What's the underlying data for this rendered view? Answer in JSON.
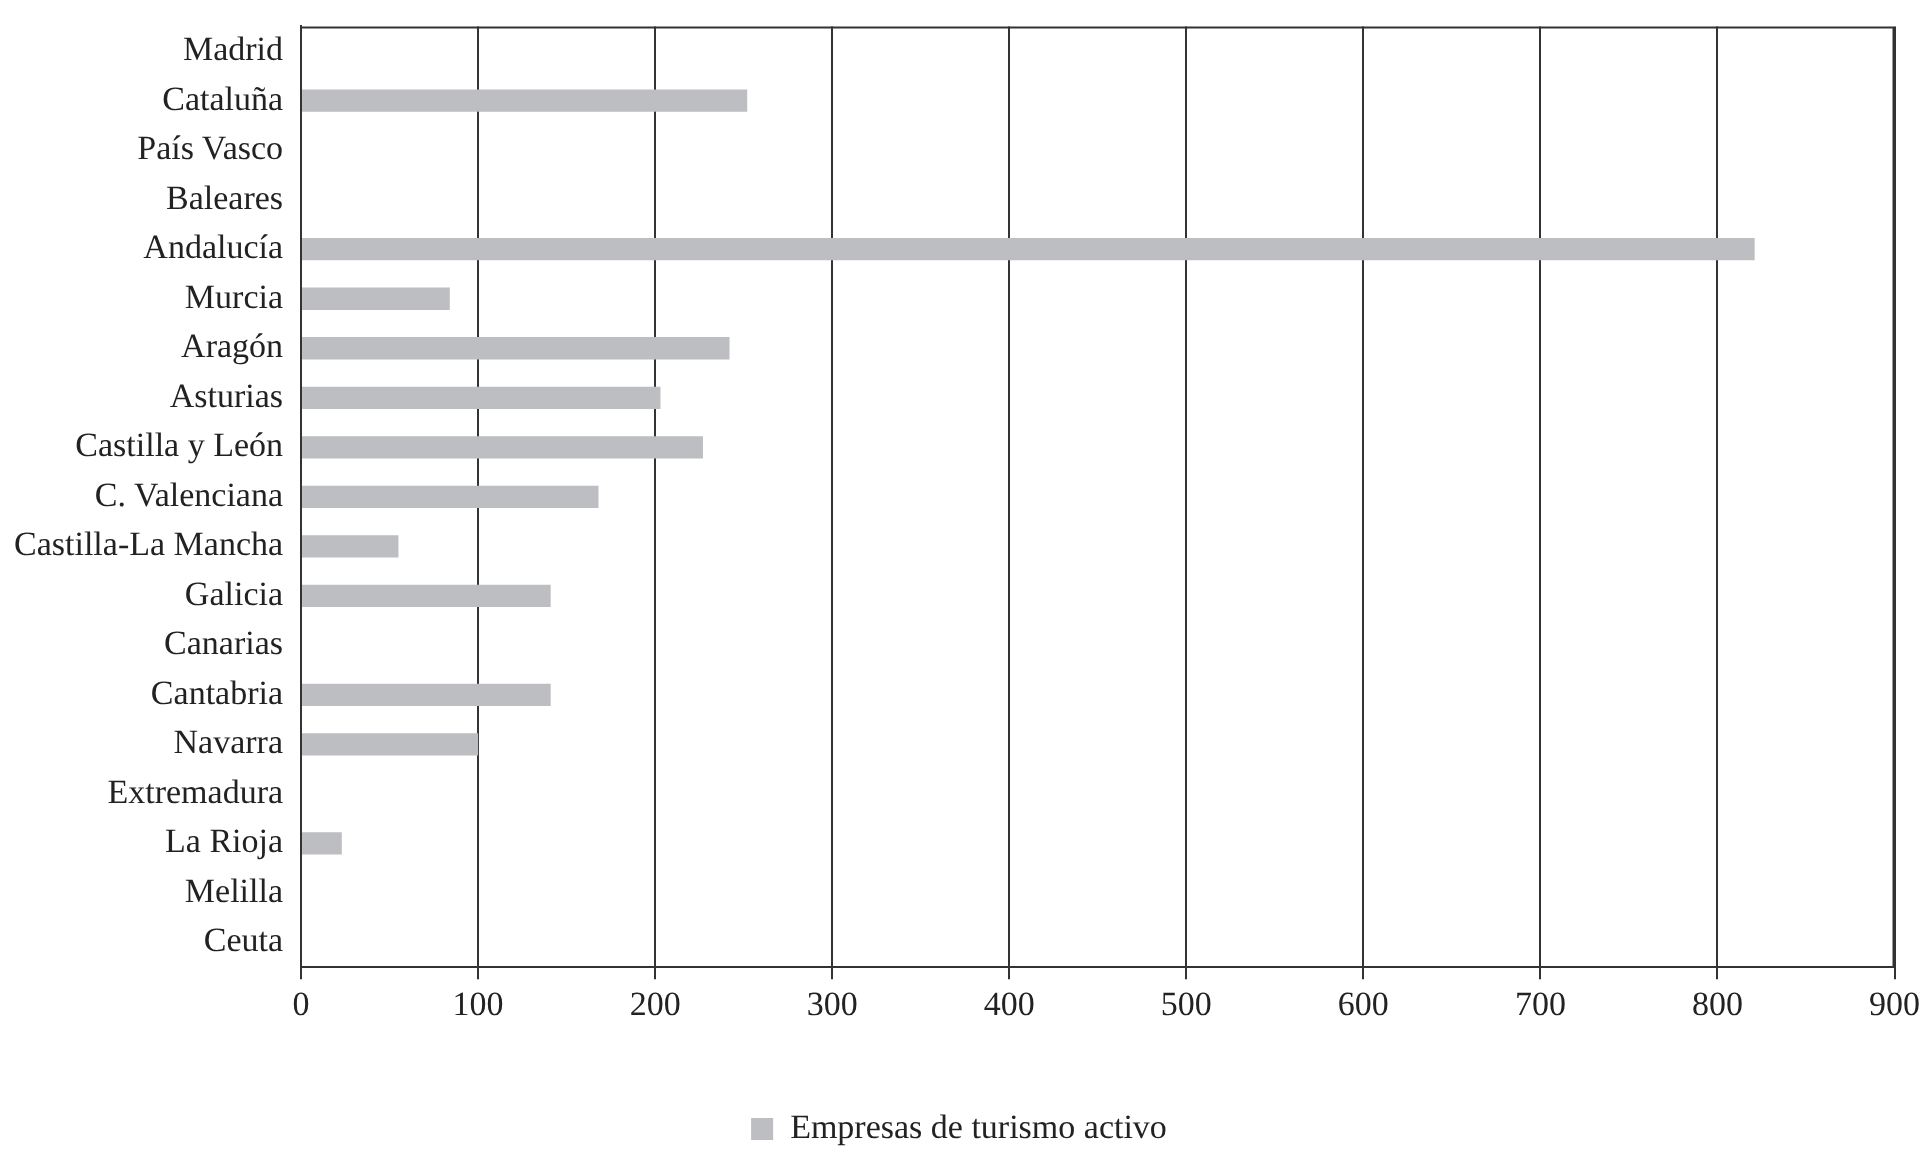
{
  "chart_data": {
    "type": "bar",
    "orientation": "horizontal",
    "categories": [
      "Madrid",
      "Cataluña",
      "País Vasco",
      "Baleares",
      "Andalucía",
      "Murcia",
      "Aragón",
      "Asturias",
      "Castilla y León",
      "C. Valenciana",
      "Castilla-La Mancha",
      "Galicia",
      "Canarias",
      "Cantabria",
      "Navarra",
      "Extremadura",
      "La Rioja",
      "Melilla",
      "Ceuta"
    ],
    "series": [
      {
        "name": "Empresas de turismo activo",
        "color": "#bdbec2",
        "values": [
          0,
          252,
          0,
          0,
          821,
          84,
          242,
          203,
          227,
          168,
          55,
          141,
          0,
          141,
          100,
          0,
          23,
          0,
          0
        ]
      }
    ],
    "xlim": [
      0,
      900
    ],
    "xticks": [
      0,
      100,
      200,
      300,
      400,
      500,
      600,
      700,
      800,
      900
    ],
    "grid": "x",
    "legend": "bottom"
  }
}
